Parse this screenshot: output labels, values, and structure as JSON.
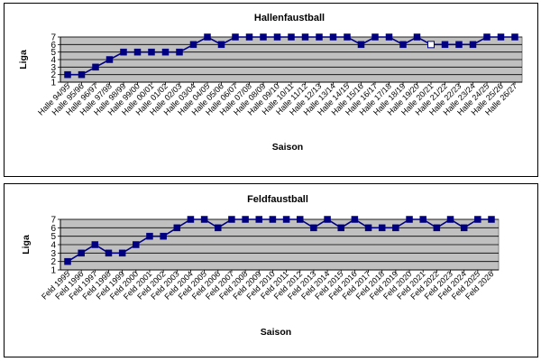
{
  "chart_data": [
    {
      "type": "line",
      "title": "Hallenfaustball",
      "xlabel": "Saison",
      "ylabel": "Liga",
      "ylim": [
        1,
        7
      ],
      "yticks": [
        1,
        2,
        3,
        4,
        5,
        6,
        7
      ],
      "grid": true,
      "plot_background": "#c0c0c0",
      "line_color": "#000080",
      "marker_color": "#000080",
      "highlight_marker_color": "#ffffff",
      "highlight_index": 26,
      "categories": [
        "Halle 94/95",
        "Halle 95/96",
        "Halle 96/97",
        "Halle 97/98",
        "Halle 98/99",
        "Halle 99/00",
        "Halle 00/01",
        "Halle 01/02",
        "Halle 02/03",
        "Halle 03/04",
        "Halle 04/05",
        "Halle 05/06",
        "Halle 06/07",
        "Halle 07/08",
        "Halle 08/09",
        "Halle 09/10",
        "Halle 10/11",
        "Halle 11/12",
        "Halle 12/13",
        "Halle 13/14",
        "Halle 14/15",
        "Halle 15/16",
        "Halle 16/17",
        "Halle 17/18",
        "Halle 18/19",
        "Halle 19/20",
        "Halle 20/21",
        "Halle 21/22",
        "Halle 22/23",
        "Halle 23/24",
        "Halle 24/25",
        "Halle 25/26",
        "Halle 26/27"
      ],
      "values": [
        2,
        2,
        3,
        4,
        5,
        5,
        5,
        5,
        5,
        6,
        7,
        6,
        7,
        7,
        7,
        7,
        7,
        7,
        7,
        7,
        7,
        6,
        7,
        7,
        6,
        7,
        6,
        6,
        6,
        6,
        7,
        7,
        7
      ]
    },
    {
      "type": "line",
      "title": "Feldfaustball",
      "xlabel": "Saison",
      "ylabel": "Liga",
      "ylim": [
        1,
        7
      ],
      "yticks": [
        1,
        2,
        3,
        4,
        5,
        6,
        7
      ],
      "grid": true,
      "plot_background": "#c0c0c0",
      "line_color": "#000080",
      "marker_color": "#000080",
      "categories": [
        "Feld 1995",
        "Feld 1996",
        "Feld 1997",
        "Feld 1998",
        "Feld 1999",
        "Feld 2000",
        "Feld 2001",
        "Feld 2002",
        "Feld 2003",
        "Feld 2004",
        "Feld 2005",
        "Feld 2006",
        "Feld 2007",
        "Feld 2008",
        "Feld 2009",
        "Feld 2010",
        "Feld 2011",
        "Feld 2012",
        "Feld 2013",
        "Feld 2014",
        "Feld 2015",
        "Feld 2016",
        "Feld 2017",
        "Feld 2018",
        "Feld 2019",
        "Feld 2020",
        "Feld 2021",
        "Feld 2022",
        "Feld 2023",
        "Feld 2024",
        "Feld 2025",
        "Feld 2026"
      ],
      "values": [
        2,
        3,
        4,
        3,
        3,
        4,
        5,
        5,
        6,
        7,
        7,
        6,
        7,
        7,
        7,
        7,
        7,
        7,
        6,
        7,
        6,
        7,
        6,
        6,
        6,
        7,
        7,
        6,
        7,
        6,
        7,
        7
      ]
    }
  ]
}
